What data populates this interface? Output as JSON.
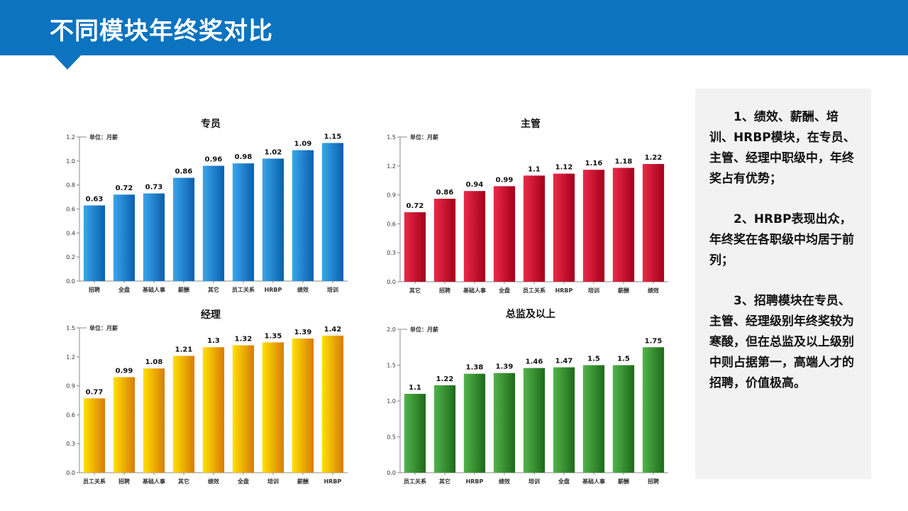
{
  "header": {
    "title": "不同模块年终奖对比"
  },
  "notes": [
    "1、绩效、薪酬、培训、HRBP模块，在专员、主管、经理中职级中，年终奖占有优势；",
    "2、HRBP表现出众，年终奖在各职级中均居于前列；",
    "3、招聘模块在专员、主管、经理级别年终奖较为寒酸，但在总监及以上级别中则占据第一，高端人才的招聘，价值极高。"
  ],
  "colors": {
    "blue": [
      "#3aa6ea",
      "#0a5fae"
    ],
    "red": [
      "#ea2a48",
      "#a3001a"
    ],
    "gold": [
      "#ffe000",
      "#d87c08"
    ],
    "green": [
      "#52b44a",
      "#1e6a1a"
    ]
  },
  "chart_data": [
    {
      "type": "bar",
      "title": "专员",
      "unit_label": "单位：月薪",
      "color": "blue",
      "categories": [
        "招聘",
        "全盘",
        "基础人事",
        "薪酬",
        "其它",
        "员工关系",
        "HRBP",
        "绩效",
        "培训"
      ],
      "values": [
        0.63,
        0.72,
        0.73,
        0.86,
        0.96,
        0.98,
        1.02,
        1.09,
        1.15
      ],
      "ylim": [
        0,
        1.2
      ],
      "yticks": [
        "0.0",
        "0.2",
        "0.4",
        "0.6",
        "0.8",
        "1.0",
        "1.2"
      ]
    },
    {
      "type": "bar",
      "title": "主管",
      "unit_label": "单位：月薪",
      "color": "red",
      "categories": [
        "其它",
        "招聘",
        "基础人事",
        "全盘",
        "员工关系",
        "HRBP",
        "培训",
        "薪酬",
        "绩效"
      ],
      "values": [
        0.72,
        0.86,
        0.94,
        0.99,
        1.1,
        1.12,
        1.16,
        1.18,
        1.22
      ],
      "ylim": [
        0,
        1.5
      ],
      "yticks": [
        "0.0",
        "0.3",
        "0.6",
        "0.9",
        "1.2",
        "1.5"
      ]
    },
    {
      "type": "bar",
      "title": "经理",
      "unit_label": "单位：月薪",
      "color": "gold",
      "categories": [
        "员工关系",
        "招聘",
        "基础人事",
        "其它",
        "绩效",
        "全盘",
        "培训",
        "薪酬",
        "HRBP"
      ],
      "values": [
        0.77,
        0.99,
        1.08,
        1.21,
        1.3,
        1.32,
        1.35,
        1.39,
        1.42
      ],
      "ylim": [
        0,
        1.5
      ],
      "yticks": [
        "0.0",
        "0.3",
        "0.6",
        "0.9",
        "1.2",
        "1.5"
      ]
    },
    {
      "type": "bar",
      "title": "总监及以上",
      "unit_label": "单位：月薪",
      "color": "green",
      "categories": [
        "员工关系",
        "其它",
        "HRBP",
        "绩效",
        "培训",
        "全盘",
        "基础人事",
        "薪酬",
        "招聘"
      ],
      "values": [
        1.1,
        1.22,
        1.38,
        1.39,
        1.46,
        1.47,
        1.5,
        1.5,
        1.75
      ],
      "ylim": [
        0,
        2.0
      ],
      "yticks": [
        "0.0",
        "0.5",
        "1.0",
        "1.5",
        "2.0"
      ]
    }
  ]
}
